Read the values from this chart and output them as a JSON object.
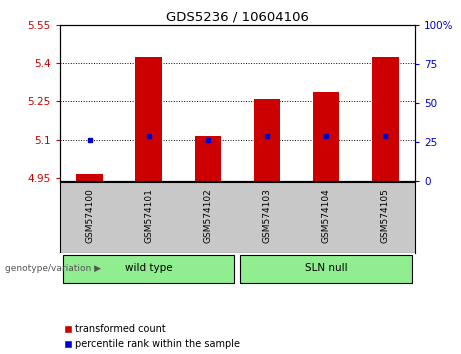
{
  "title": "GDS5236 / 10604106",
  "samples": [
    "GSM574100",
    "GSM574101",
    "GSM574102",
    "GSM574103",
    "GSM574104",
    "GSM574105"
  ],
  "red_values": [
    4.965,
    5.425,
    5.115,
    5.26,
    5.285,
    5.425
  ],
  "blue_values": [
    5.1,
    5.115,
    5.1,
    5.115,
    5.115,
    5.115
  ],
  "bar_base": 4.94,
  "ylim_left": [
    4.94,
    5.55
  ],
  "ylim_right": [
    0,
    100
  ],
  "yticks_left": [
    4.95,
    5.1,
    5.25,
    5.4,
    5.55
  ],
  "ytick_labels_left": [
    "4.95",
    "5.1",
    "5.25",
    "5.4",
    "5.55"
  ],
  "yticks_right": [
    0,
    25,
    50,
    75,
    100
  ],
  "ytick_labels_right": [
    "0",
    "25",
    "50",
    "75",
    "100%"
  ],
  "hlines": [
    5.1,
    5.25,
    5.4
  ],
  "red_color": "#cc0000",
  "blue_color": "#0000cc",
  "bar_width": 0.45,
  "tick_label_area_color": "#c8c8c8",
  "group_color": "#90ee90",
  "legend_red": "transformed count",
  "legend_blue": "percentile rank within the sample",
  "genotype_label": "genotype/variation"
}
